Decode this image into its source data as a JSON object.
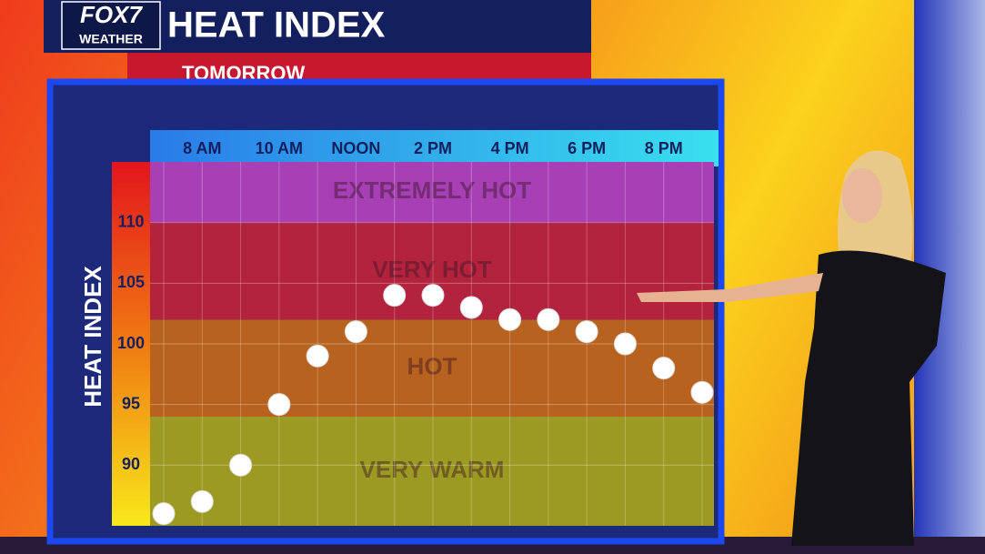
{
  "brand": "FOX7",
  "brand_sub": "WEATHER",
  "chart_data": {
    "type": "scatter",
    "title": "HEAT INDEX",
    "subtitle": "TOMORROW",
    "y_label": "HEAT INDEX",
    "categories": [
      null,
      "8 AM",
      null,
      "10 AM",
      null,
      "NOON",
      null,
      "2 PM",
      null,
      "4 PM",
      null,
      "6 PM",
      null,
      "8 PM",
      null
    ],
    "values": [
      86,
      87,
      90,
      95,
      99,
      101,
      104,
      104,
      103,
      102,
      102,
      101,
      100,
      98,
      96
    ],
    "color": "#ffffff",
    "ylim": [
      85,
      115
    ],
    "yticks": [
      90,
      95,
      100,
      105,
      110
    ],
    "grid": true,
    "bands": [
      {
        "name": "VERY WARM",
        "from": 85,
        "to": 94,
        "color": "#9c9a22"
      },
      {
        "name": "HOT",
        "from": 94,
        "to": 102,
        "color": "#b8621f"
      },
      {
        "name": "VERY HOT",
        "from": 102,
        "to": 110,
        "color": "#b3233d"
      },
      {
        "name": "EXTREMELY HOT",
        "from": 110,
        "to": 115,
        "color": "#a640b4"
      }
    ]
  }
}
